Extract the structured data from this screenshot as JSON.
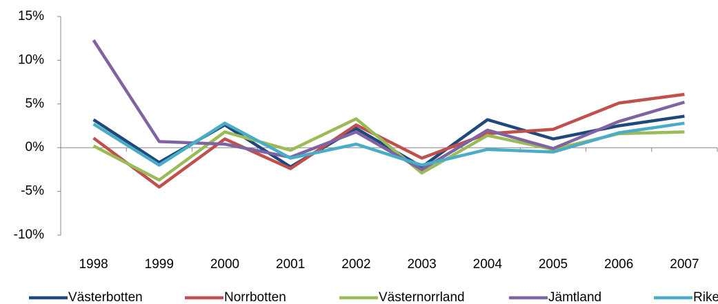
{
  "chart_data": {
    "type": "line",
    "categories": [
      "1998",
      "1999",
      "2000",
      "2001",
      "2002",
      "2003",
      "2004",
      "2005",
      "2006",
      "2007"
    ],
    "series": [
      {
        "name": "Västerbotten",
        "color": "#1f497d",
        "values": [
          3.2,
          -1.7,
          2.6,
          -2.2,
          2.2,
          -2.2,
          3.2,
          1.0,
          2.5,
          3.6
        ]
      },
      {
        "name": "Norrbotten",
        "color": "#c0504d",
        "values": [
          1.1,
          -4.5,
          1.0,
          -2.4,
          2.6,
          -1.2,
          1.6,
          2.1,
          5.1,
          6.1
        ]
      },
      {
        "name": "Västernorrland",
        "color": "#9bbb59",
        "values": [
          0.2,
          -3.7,
          1.8,
          -0.3,
          3.3,
          -2.9,
          1.4,
          -0.2,
          1.6,
          1.8
        ]
      },
      {
        "name": "Jämtland",
        "color": "#8064a2",
        "values": [
          12.3,
          0.7,
          0.4,
          -1.1,
          1.8,
          -2.5,
          2.0,
          -0.1,
          3.0,
          5.2
        ]
      },
      {
        "name": "Riket",
        "color": "#4bacc6",
        "values": [
          2.7,
          -2.0,
          2.8,
          -1.2,
          0.4,
          -2.0,
          -0.2,
          -0.5,
          1.7,
          2.8
        ]
      }
    ],
    "ylim": [
      -10,
      15
    ],
    "yticks": [
      {
        "value": -10,
        "label": "-10%"
      },
      {
        "value": -5,
        "label": "-5%"
      },
      {
        "value": 0,
        "label": "0%"
      },
      {
        "value": 5,
        "label": "5%"
      },
      {
        "value": 10,
        "label": "10%"
      },
      {
        "value": 15,
        "label": "15%"
      }
    ],
    "grid": false,
    "legend": "bottom"
  }
}
